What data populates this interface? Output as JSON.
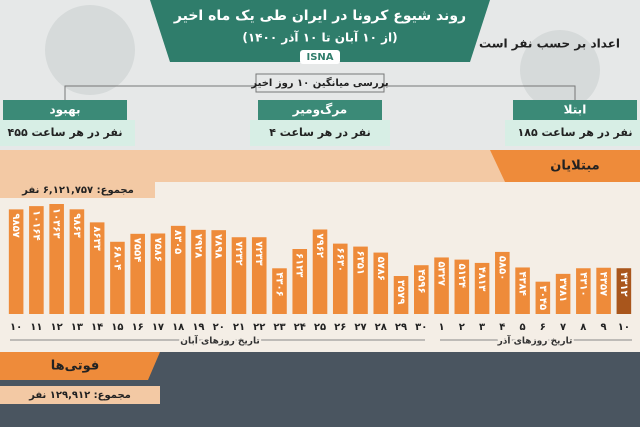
{
  "header": {
    "title": "روند شیوع کرونا در ایران طی یک ماه اخیر",
    "subtitle": "(از ۱۰ آبان تا ۱۰ آذر ۱۴۰۰)",
    "source": "ISNA",
    "note": "اعداد بر حسب نفر است",
    "average_label": "بررسی میانگین ۱۰ روز اخیر"
  },
  "cards": [
    {
      "title": "بهبود",
      "value": "۴۵۵ نفر در هر ساعت"
    },
    {
      "title": "مرگ‌ومیر",
      "value": "۴ نفر در هر ساعت"
    },
    {
      "title": "ابتلا",
      "value": "۱۸۵ نفر در هر ساعت"
    }
  ],
  "chart_data": {
    "type": "bar",
    "title": "مبتلایان",
    "total": "مجموع: ۶,۱۲۱,۷۵۷ نفر",
    "categories": [
      "۱۰",
      "۱۱",
      "۱۲",
      "۱۳",
      "۱۴",
      "۱۵",
      "۱۶",
      "۱۷",
      "۱۸",
      "۱۹",
      "۲۰",
      "۲۱",
      "۲۲",
      "۲۳",
      "۲۴",
      "۲۵",
      "۲۶",
      "۲۷",
      "۲۸",
      "۲۹",
      "۳۰",
      "۱",
      "۲",
      "۳",
      "۴",
      "۵",
      "۶",
      "۷",
      "۸",
      "۹",
      "۱۰"
    ],
    "values": [
      9857,
      10164,
      10363,
      9863,
      8633,
      6804,
      7554,
      7586,
      8305,
      7928,
      7898,
      7232,
      7233,
      4306,
      6123,
      7962,
      6630,
      6351,
      5786,
      3579,
      4596,
      5327,
      5124,
      4813,
      5850,
      4384,
      3045,
      3781,
      4310,
      4357,
      4312
    ],
    "value_labels": [
      "۹۸۵۷",
      "۱۰۱۶۴",
      "۱۰۳۶۳",
      "۹۸۶۳",
      "۸۶۳۳",
      "۶۸۰۴",
      "۷۵۵۴",
      "۷۵۸۶",
      "۸۳۰۵",
      "۷۹۲۸",
      "۷۸۹۸",
      "۷۲۳۲",
      "۷۲۳۳",
      "۴۳۰۶",
      "۶۱۲۳",
      "۷۹۶۲",
      "۶۶۳۰",
      "۶۳۵۱",
      "۵۷۸۶",
      "۳۵۷۹",
      "۴۵۹۶",
      "۵۳۲۷",
      "۵۱۲۴",
      "۴۸۱۳",
      "۵۸۵۰",
      "۴۳۸۴",
      "۳۰۴۵",
      "۳۷۸۱",
      "۴۳۱۰",
      "۴۳۵۷",
      "۴۳۱۲"
    ],
    "color": "#ee8b3a",
    "highlight_color": "#a9561c",
    "x_groups": [
      "تاریخ روزهای آبان",
      "تاریخ روزهای آذر"
    ]
  },
  "deaths": {
    "title": "فوتی‌ها",
    "total": "مجموع: ۱۲۹,۹۱۲ نفر"
  }
}
